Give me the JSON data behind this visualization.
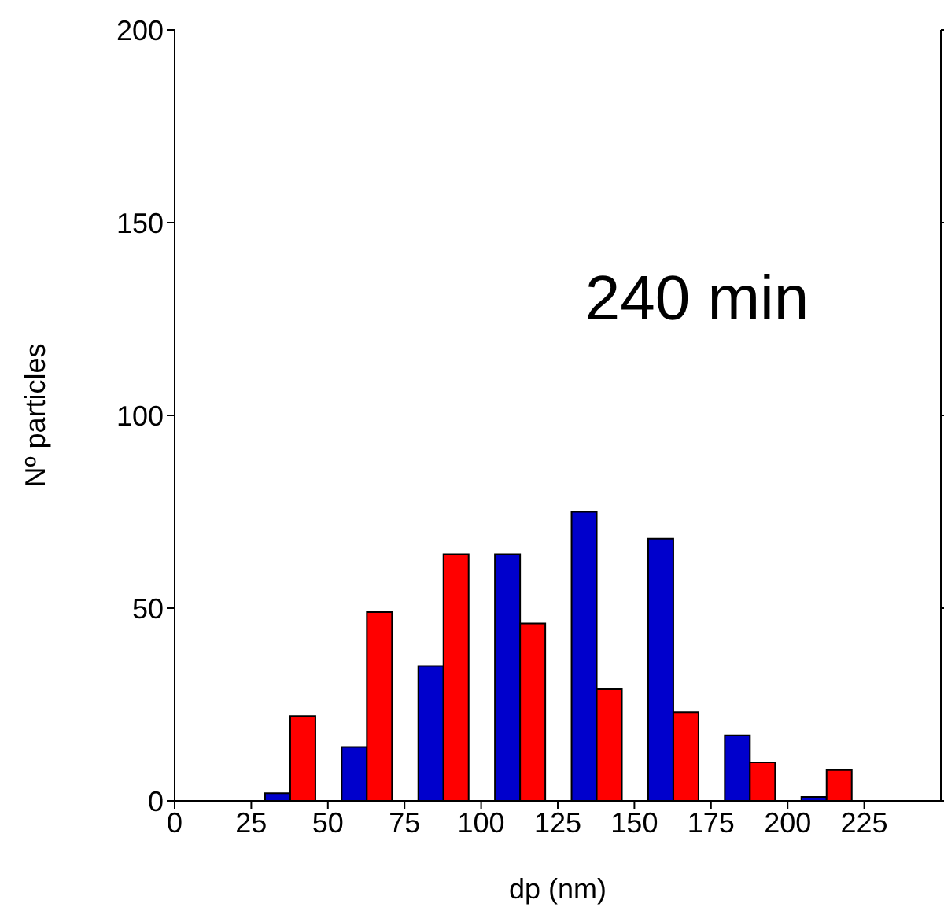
{
  "chart_data": {
    "type": "histogram",
    "xlabel": "dp (nm)",
    "ylabel": "Nº particles",
    "annotations": [
      "240 min"
    ],
    "bins": [
      25,
      50,
      75,
      100,
      125,
      150,
      175,
      200,
      225
    ],
    "series": [
      {
        "color": "#0000cc",
        "values": [
          2,
          14,
          35,
          64,
          75,
          68,
          17,
          1
        ]
      },
      {
        "color": "#ff0000",
        "values": [
          22,
          49,
          64,
          46,
          29,
          23,
          10,
          8
        ]
      }
    ],
    "xlim": [
      0,
      250
    ],
    "xticks": [
      0,
      25,
      50,
      75,
      100,
      125,
      150,
      175,
      200,
      225
    ],
    "ylim": [
      0,
      200
    ],
    "yticks": [
      0,
      50,
      100,
      150,
      200
    ],
    "grid": false,
    "legend": false
  }
}
